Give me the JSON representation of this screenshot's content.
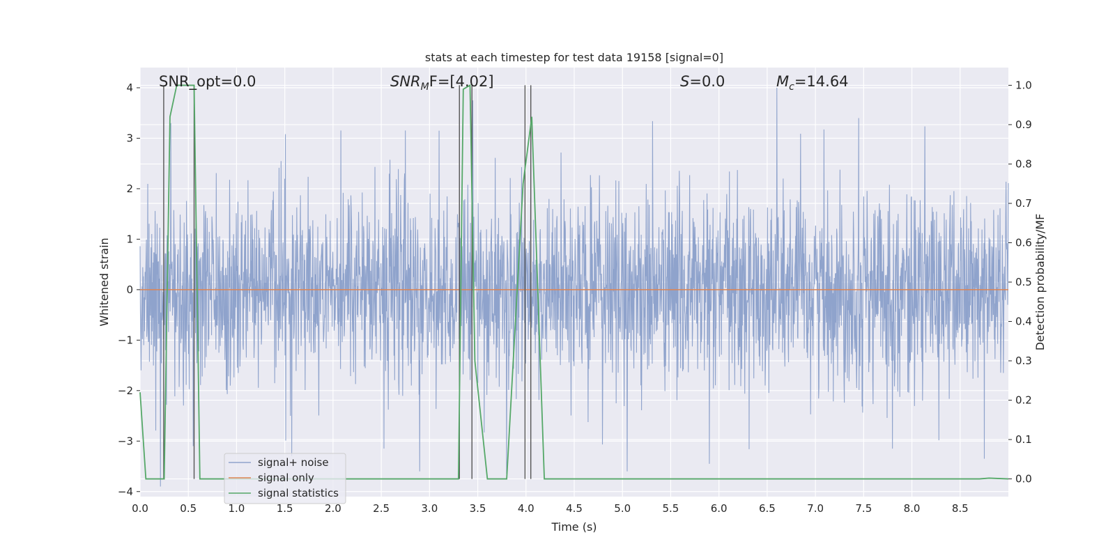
{
  "chart_data": {
    "type": "line",
    "title": "stats at each timestep for test data 19158 [signal=0]",
    "xlabel": "Time (s)",
    "ylabel_left": "Whitened strain",
    "ylabel_right": "Detection probability/MF",
    "xlim": [
      0.0,
      9.0
    ],
    "ylim_left": [
      -4.1,
      4.4
    ],
    "ylim_right": [
      -0.045,
      1.045
    ],
    "grid": true,
    "legend_position": "lower-left",
    "x_ticks": [
      "0.0",
      "0.5",
      "1.0",
      "1.5",
      "2.0",
      "2.5",
      "3.0",
      "3.5",
      "4.0",
      "4.5",
      "5.0",
      "5.5",
      "6.0",
      "6.5",
      "7.0",
      "7.5",
      "8.0",
      "8.5"
    ],
    "y_ticks_left": [
      "4",
      "3",
      "2",
      "1",
      "0",
      "−1",
      "−2",
      "−3",
      "−4"
    ],
    "y_ticks_right": [
      "1.0",
      "0.9",
      "0.8",
      "0.7",
      "0.6",
      "0.5",
      "0.4",
      "0.3",
      "0.2",
      "0.1",
      "0.0"
    ],
    "annotations": {
      "snr_opt": "SNR_opt=0.0",
      "snr_mf_base": "SNR",
      "snr_mf_sub": "M",
      "snr_mf_rest": "F=[4.02]",
      "s_label": "S",
      "s_value": "=0.0",
      "mc_base": "M",
      "mc_sub": "c",
      "mc_value": "=14.64"
    },
    "legend": [
      {
        "name": "signal+ noise",
        "color": "#8fa3cc"
      },
      {
        "name": "signal only",
        "color": "#dd8452"
      },
      {
        "name": "signal statistics",
        "color": "#55a868"
      }
    ],
    "series": [
      {
        "name": "signal+ noise",
        "axis": "left",
        "description_stats": {
          "mean": 0.0,
          "std": 0.95,
          "min": -3.9,
          "max": 4.0
        },
        "peaks": [
          {
            "x": 0.21,
            "y": -3.9
          },
          {
            "x": 0.32,
            "y": 3.3
          },
          {
            "x": 0.55,
            "y": -3.1
          },
          {
            "x": 2.9,
            "y": -3.6
          },
          {
            "x": 3.1,
            "y": 3.15
          },
          {
            "x": 3.45,
            "y": 3.75
          },
          {
            "x": 3.8,
            "y": -3.65
          },
          {
            "x": 5.9,
            "y": -3.45
          },
          {
            "x": 5.05,
            "y": -3.6
          },
          {
            "x": 6.6,
            "y": 4.0
          },
          {
            "x": 7.45,
            "y": 3.4
          },
          {
            "x": 7.8,
            "y": -3.15
          },
          {
            "x": 8.75,
            "y": -3.35
          }
        ]
      },
      {
        "name": "signal only",
        "axis": "left",
        "x": [
          0.0,
          9.0
        ],
        "y": [
          0.0,
          0.0
        ]
      },
      {
        "name": "signal statistics",
        "axis": "right",
        "x": [
          0.0,
          0.06,
          0.25,
          0.31,
          0.38,
          0.56,
          0.62,
          3.3,
          3.35,
          3.42,
          3.47,
          3.6,
          3.8,
          3.97,
          4.06,
          4.19,
          4.22,
          8.7,
          8.8,
          9.0
        ],
        "y": [
          0.22,
          0.0,
          0.0,
          0.92,
          1.0,
          1.0,
          0.0,
          0.0,
          0.99,
          1.0,
          0.3,
          0.0,
          0.0,
          0.75,
          0.92,
          0.0,
          0.0,
          0.0,
          0.002,
          0.0
        ]
      }
    ],
    "vertical_markers_s": [
      0.245,
      0.56,
      3.31,
      3.44,
      3.99,
      4.05
    ]
  }
}
